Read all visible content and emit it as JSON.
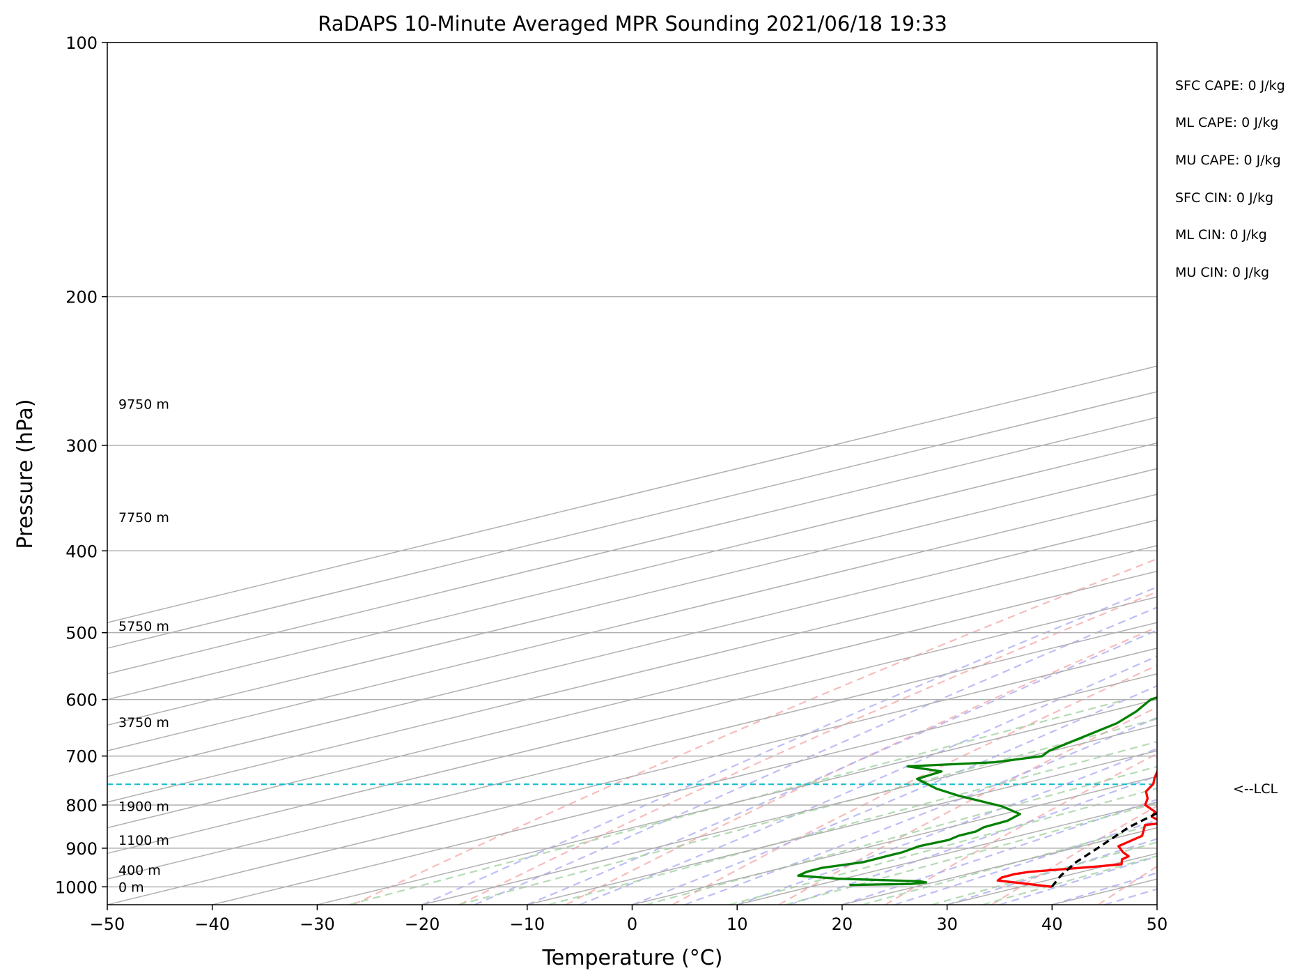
{
  "chart_data": {
    "type": "line",
    "title": "RaDAPS 10-Minute Averaged MPR Sounding 2021/06/18 19:33",
    "xlabel": "Temperature (°C)",
    "ylabel": "Pressure (hPa)",
    "xlim": [
      -50,
      50
    ],
    "ylim": [
      1050,
      100
    ],
    "y_scale": "log",
    "skew_t": true,
    "grid": true,
    "x_ticks": [
      -50,
      -40,
      -30,
      -20,
      -10,
      0,
      10,
      20,
      30,
      40,
      50
    ],
    "x_tick_labels": [
      "−50",
      "−40",
      "−30",
      "−20",
      "−10",
      "0",
      "10",
      "20",
      "30",
      "40",
      "50"
    ],
    "y_ticks": [
      1000,
      900,
      800,
      700,
      600,
      500,
      400,
      300,
      200,
      100
    ],
    "y_tick_labels": [
      "1000",
      "900",
      "800",
      "700",
      "600",
      "500",
      "400",
      "300",
      "200",
      "100"
    ],
    "height_labels": [
      {
        "text": "0 m",
        "p": 1000
      },
      {
        "text": "400 m",
        "p": 955
      },
      {
        "text": "1100 m",
        "p": 880
      },
      {
        "text": "1900 m",
        "p": 802
      },
      {
        "text": "3750 m",
        "p": 638
      },
      {
        "text": "5750 m",
        "p": 491
      },
      {
        "text": "7750 m",
        "p": 365
      },
      {
        "text": "9750 m",
        "p": 268
      }
    ],
    "indices": [
      "SFC CAPE: 0 J/kg",
      "ML CAPE: 0 J/kg",
      "MU CAPE: 0 J/kg",
      "SFC CIN: 0 J/kg",
      "ML CIN: 0 J/kg",
      "MU CIN: 0 J/kg"
    ],
    "lcl": {
      "label": "<--LCL",
      "p": 756
    },
    "series": [
      {
        "id": "temperature",
        "color": "#ff0000",
        "points": [
          [
            33.0,
            1000
          ],
          [
            28.6,
            990
          ],
          [
            25.4,
            983
          ],
          [
            24.6,
            975
          ],
          [
            24.5,
            966
          ],
          [
            25.0,
            960
          ],
          [
            29.4,
            946
          ],
          [
            30.8,
            940
          ],
          [
            29.0,
            928
          ],
          [
            28.4,
            920
          ],
          [
            26.3,
            910
          ],
          [
            23.5,
            895
          ],
          [
            21.7,
            870
          ],
          [
            17.8,
            845
          ],
          [
            18.7,
            840
          ],
          [
            15.2,
            826
          ],
          [
            13.6,
            815
          ],
          [
            10.0,
            800
          ],
          [
            7.7,
            786
          ],
          [
            4.8,
            771
          ],
          [
            2.5,
            755
          ],
          [
            0.5,
            744
          ],
          [
            -3.7,
            720
          ],
          [
            -4.6,
            707
          ],
          [
            -6.6,
            696
          ],
          [
            -10.0,
            675
          ],
          [
            -12.6,
            660
          ],
          [
            -17.4,
            640
          ],
          [
            -20.9,
            620
          ],
          [
            -24.7,
            600
          ],
          [
            -28.1,
            580
          ],
          [
            -31.9,
            560
          ],
          [
            -36.0,
            540
          ],
          [
            -38.5,
            520
          ],
          [
            -40.6,
            500
          ],
          [
            -42.9,
            480
          ],
          [
            -45.4,
            460
          ],
          [
            -47.8,
            440
          ],
          [
            -51.1,
            420
          ],
          [
            -54.3,
            400
          ],
          [
            -57.0,
            380
          ],
          [
            -59.3,
            360
          ],
          [
            -61.7,
            340
          ],
          [
            -63.5,
            320
          ],
          [
            -65.6,
            300
          ],
          [
            -67.0,
            285
          ],
          [
            -67.6,
            276
          ],
          [
            -68.8,
            268
          ],
          [
            -71.0,
            258
          ]
        ]
      },
      {
        "id": "dewpoint",
        "color": "#008000",
        "points": [
          [
            13.0,
            995
          ],
          [
            18.5,
            992
          ],
          [
            19.3,
            988
          ],
          [
            18.3,
            985
          ],
          [
            9.4,
            978
          ],
          [
            4.5,
            970
          ],
          [
            3.8,
            960
          ],
          [
            3.7,
            950
          ],
          [
            5.4,
            935
          ],
          [
            5.3,
            920
          ],
          [
            5.3,
            910
          ],
          [
            4.5,
            895
          ],
          [
            4.9,
            880
          ],
          [
            4.2,
            870
          ],
          [
            4.2,
            860
          ],
          [
            3.3,
            850
          ],
          [
            3.0,
            835
          ],
          [
            1.6,
            820
          ],
          [
            -3.1,
            803
          ],
          [
            -11.4,
            780
          ],
          [
            -16.3,
            765
          ],
          [
            -21.9,
            745
          ],
          [
            -22.5,
            730
          ],
          [
            -27.7,
            720
          ],
          [
            -21.0,
            712
          ],
          [
            -18.9,
            700
          ],
          [
            -20.3,
            690
          ],
          [
            -22.4,
            665
          ],
          [
            -24.6,
            640
          ],
          [
            -27.3,
            620
          ],
          [
            -30.6,
            600
          ],
          [
            -31.8,
            580
          ],
          [
            -34.4,
            560
          ],
          [
            -37.3,
            545
          ],
          [
            -37.6,
            540
          ],
          [
            -40.3,
            520
          ],
          [
            -43.0,
            500
          ],
          [
            -45.6,
            480
          ],
          [
            -48.0,
            460
          ],
          [
            -50.0,
            440
          ],
          [
            -52.6,
            425
          ],
          [
            -54.2,
            410
          ],
          [
            -56.0,
            395
          ],
          [
            -58.5,
            380
          ],
          [
            -61.2,
            365
          ],
          [
            -63.5,
            350
          ],
          [
            -65.6,
            335
          ],
          [
            -67.0,
            325
          ],
          [
            -68.3,
            315
          ],
          [
            -68.5,
            305
          ],
          [
            -69.0,
            295
          ],
          [
            -69.7,
            280
          ],
          [
            -89.0,
            267
          ],
          [
            -73.0,
            258
          ]
        ]
      },
      {
        "id": "parcel",
        "color": "#000000",
        "dashed": true,
        "points": [
          [
            33.0,
            1000
          ],
          [
            29.5,
            970
          ],
          [
            25.7,
            935
          ],
          [
            22.3,
            900
          ],
          [
            17.1,
            850
          ],
          [
            12.7,
            800
          ],
          [
            10.2,
            770
          ],
          [
            9.1,
            756
          ],
          [
            6.5,
            720
          ],
          [
            3.4,
            680
          ],
          [
            0.0,
            640
          ],
          [
            -4.1,
            600
          ],
          [
            -8.4,
            560
          ],
          [
            -13.2,
            520
          ],
          [
            -15.9,
            500
          ],
          [
            -19.0,
            480
          ],
          [
            -22.6,
            460
          ],
          [
            -26.4,
            440
          ],
          [
            -30.6,
            420
          ],
          [
            -35.2,
            400
          ],
          [
            -40.3,
            380
          ],
          [
            -45.9,
            360
          ],
          [
            -52.2,
            340
          ],
          [
            -59.1,
            320
          ],
          [
            -66.7,
            300
          ],
          [
            -69.9,
            292
          ],
          [
            -72.5,
            284
          ],
          [
            -75.3,
            275
          ],
          [
            -77.0,
            268
          ],
          [
            -78.5,
            262
          ]
        ]
      }
    ]
  }
}
